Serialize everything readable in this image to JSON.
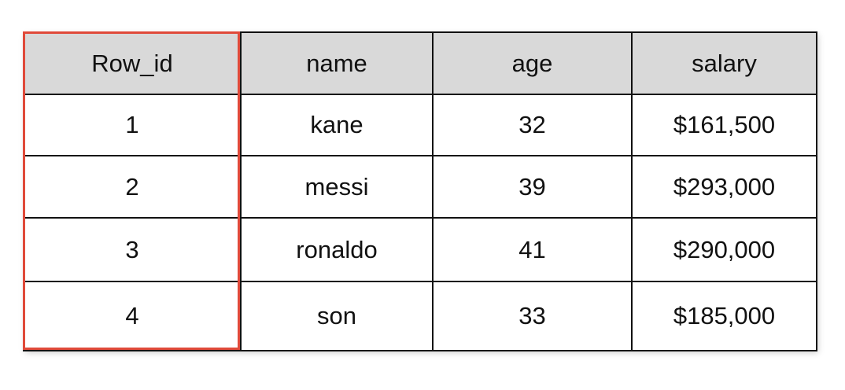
{
  "table": {
    "columns": [
      "Row_id",
      "name",
      "age",
      "salary"
    ],
    "rows": [
      [
        "1",
        "kane",
        "32",
        "$161,500"
      ],
      [
        "2",
        "messi",
        "39",
        "$293,000"
      ],
      [
        "3",
        "ronaldo",
        "41",
        "$290,000"
      ],
      [
        "4",
        "son",
        "33",
        "$185,000"
      ]
    ]
  },
  "highlight": {
    "column": "Row_id",
    "color": "#e04a3a"
  },
  "colors": {
    "header_bg": "#d9d9d9",
    "border": "#111111"
  }
}
